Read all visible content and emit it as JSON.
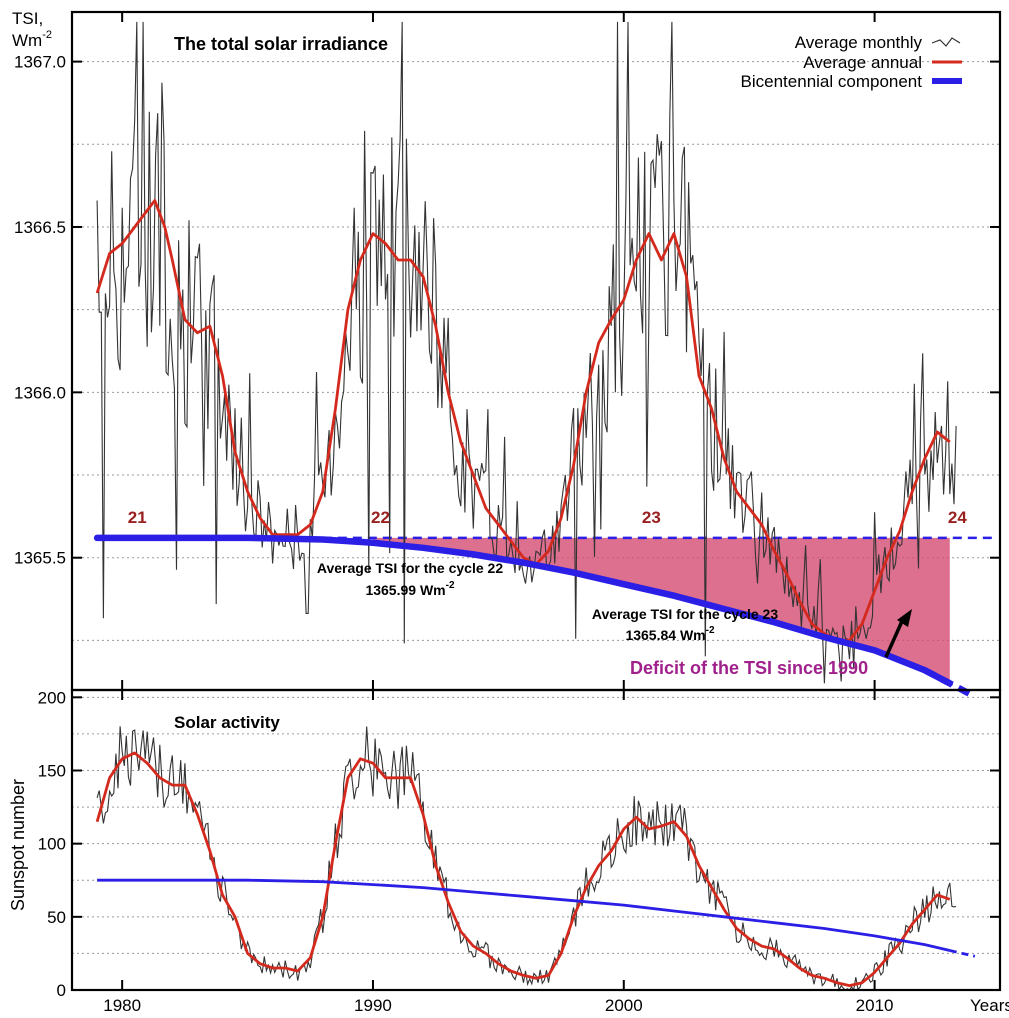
{
  "chart_data": [
    {
      "type": "line",
      "title": "The total solar irradiance",
      "ylabel_line1": "TSI,",
      "ylabel_line2": "Wm",
      "ylabel_exp": "-2",
      "ylim": [
        1365.1,
        1367.15
      ],
      "xlim": [
        1978,
        2015
      ],
      "yticks": [
        {
          "value": 1367.0,
          "label": "1367.0"
        },
        {
          "value": 1366.5,
          "label": "1366.5"
        },
        {
          "value": 1366.0,
          "label": "1366.0"
        },
        {
          "value": 1365.5,
          "label": "1365.5"
        }
      ],
      "grid": true,
      "legend_position": "top-right",
      "legend": [
        {
          "label": "Average monthly",
          "color": "#333333",
          "style": "thin"
        },
        {
          "label": "Average annual",
          "color": "#d42a1e",
          "style": "medium"
        },
        {
          "label": "Bicentennial component",
          "color": "#2b1fe6",
          "style": "thick"
        }
      ],
      "cycles": [
        {
          "label": "21",
          "x": 1980.6
        },
        {
          "label": "22",
          "x": 1990.3
        },
        {
          "label": "23",
          "x": 2001.1
        },
        {
          "label": "24",
          "x": 2013.3
        }
      ],
      "annotations": [
        {
          "line1": "Average TSI for the cycle 22",
          "line2_value": "1365.99 Wm",
          "line2_exp": "-2",
          "x": 1991.6,
          "y": 1365.42
        },
        {
          "line1": "Average TSI for the cycle 23",
          "line2_value": "1365.84 Wm",
          "line2_exp": "-2",
          "x": 2005.9,
          "y": 1365.26
        }
      ],
      "deficit_label": "Deficit of the TSI since 1990",
      "deficit_baseline": 1365.56,
      "series": [
        {
          "name": "Average annual",
          "color": "#d42a1e",
          "x": [
            1979.0,
            1979.5,
            1980.0,
            1980.5,
            1981.0,
            1981.3,
            1981.7,
            1982.0,
            1982.5,
            1983.0,
            1983.5,
            1984.0,
            1984.5,
            1985.0,
            1985.5,
            1986.0,
            1986.5,
            1987.0,
            1987.5,
            1988.0,
            1988.5,
            1989.0,
            1989.5,
            1990.0,
            1990.5,
            1991.0,
            1991.5,
            1992.0,
            1992.5,
            1993.0,
            1993.5,
            1994.0,
            1994.5,
            1995.0,
            1995.5,
            1996.0,
            1996.5,
            1997.0,
            1997.5,
            1998.0,
            1998.5,
            1999.0,
            1999.5,
            2000.0,
            2000.5,
            2001.0,
            2001.5,
            2002.0,
            2002.5,
            2003.0,
            2003.5,
            2004.0,
            2004.5,
            2005.0,
            2005.5,
            2006.0,
            2006.5,
            2007.0,
            2007.5,
            2008.0,
            2008.5,
            2009.0,
            2009.5,
            2010.0,
            2010.5,
            2011.0,
            2011.5,
            2012.0,
            2012.5,
            2013.0
          ],
          "y": [
            1366.3,
            1366.42,
            1366.45,
            1366.5,
            1366.55,
            1366.58,
            1366.5,
            1366.4,
            1366.22,
            1366.18,
            1366.2,
            1366.05,
            1365.82,
            1365.7,
            1365.62,
            1365.57,
            1365.57,
            1365.57,
            1365.6,
            1365.7,
            1365.95,
            1366.25,
            1366.4,
            1366.48,
            1366.45,
            1366.4,
            1366.4,
            1366.35,
            1366.2,
            1366.0,
            1365.85,
            1365.75,
            1365.65,
            1365.6,
            1365.55,
            1365.5,
            1365.48,
            1365.52,
            1365.62,
            1365.78,
            1366.0,
            1366.15,
            1366.22,
            1366.28,
            1366.4,
            1366.48,
            1366.4,
            1366.48,
            1366.35,
            1366.05,
            1365.95,
            1365.8,
            1365.7,
            1365.65,
            1365.6,
            1365.52,
            1365.45,
            1365.37,
            1365.3,
            1365.27,
            1365.25,
            1365.25,
            1365.3,
            1365.4,
            1365.5,
            1365.58,
            1365.7,
            1365.8,
            1365.88,
            1365.85
          ]
        },
        {
          "name": "Bicentennial component",
          "color": "#2b1fe6",
          "x": [
            1979,
            1982,
            1985,
            1988,
            1990,
            1992,
            1994,
            1996,
            1998,
            2000,
            2002,
            2004,
            2006,
            2008,
            2010,
            2012,
            2013,
            2014
          ],
          "y": [
            1365.56,
            1365.56,
            1365.56,
            1365.555,
            1365.545,
            1365.53,
            1365.51,
            1365.485,
            1365.455,
            1365.42,
            1365.385,
            1365.345,
            1365.305,
            1365.26,
            1365.22,
            1365.16,
            1365.12,
            1365.08
          ]
        }
      ]
    },
    {
      "type": "line",
      "title": "Solar activity",
      "ylabel": "Sunspot number",
      "xlabel": "Years",
      "ylim": [
        0,
        205
      ],
      "xlim": [
        1978,
        2015
      ],
      "yticks": [
        0,
        50,
        100,
        150,
        200
      ],
      "xticks": [
        1980,
        1990,
        2000,
        2010
      ],
      "grid": true,
      "series": [
        {
          "name": "Average annual",
          "color": "#d42a1e",
          "x": [
            1979.0,
            1979.5,
            1980.0,
            1980.5,
            1981.0,
            1981.5,
            1982.0,
            1982.5,
            1983.0,
            1983.5,
            1984.0,
            1984.5,
            1985.0,
            1985.5,
            1986.0,
            1986.5,
            1987.0,
            1987.5,
            1988.0,
            1988.5,
            1989.0,
            1989.5,
            1990.0,
            1990.5,
            1991.0,
            1991.5,
            1992.0,
            1992.5,
            1993.0,
            1993.5,
            1994.0,
            1994.5,
            1995.0,
            1995.5,
            1996.0,
            1996.5,
            1997.0,
            1997.5,
            1998.0,
            1998.5,
            1999.0,
            1999.5,
            2000.0,
            2000.5,
            2001.0,
            2001.5,
            2002.0,
            2002.5,
            2003.0,
            2003.5,
            2004.0,
            2004.5,
            2005.0,
            2005.5,
            2006.0,
            2006.5,
            2007.0,
            2007.5,
            2008.0,
            2008.5,
            2009.0,
            2009.5,
            2010.0,
            2010.5,
            2011.0,
            2011.5,
            2012.0,
            2012.5,
            2013.0
          ],
          "y": [
            115,
            145,
            158,
            162,
            155,
            145,
            140,
            140,
            120,
            95,
            65,
            50,
            25,
            18,
            15,
            15,
            13,
            22,
            50,
            100,
            145,
            158,
            155,
            145,
            145,
            145,
            120,
            85,
            60,
            40,
            30,
            25,
            18,
            13,
            10,
            8,
            10,
            25,
            50,
            70,
            85,
            95,
            110,
            118,
            110,
            112,
            115,
            105,
            85,
            70,
            55,
            42,
            35,
            30,
            28,
            22,
            15,
            10,
            8,
            5,
            3,
            5,
            12,
            22,
            32,
            45,
            55,
            65,
            62
          ]
        },
        {
          "name": "Bicentennial component",
          "color": "#2b1fe6",
          "x": [
            1979,
            1982,
            1985,
            1988,
            1990,
            1992,
            1994,
            1996,
            1998,
            2000,
            2002,
            2004,
            2006,
            2008,
            2010,
            2012,
            2013,
            2014
          ],
          "y": [
            75,
            75,
            75,
            74,
            72,
            70,
            67,
            64,
            61,
            58,
            54,
            50,
            46,
            42,
            37,
            31,
            27,
            23
          ]
        }
      ]
    }
  ]
}
